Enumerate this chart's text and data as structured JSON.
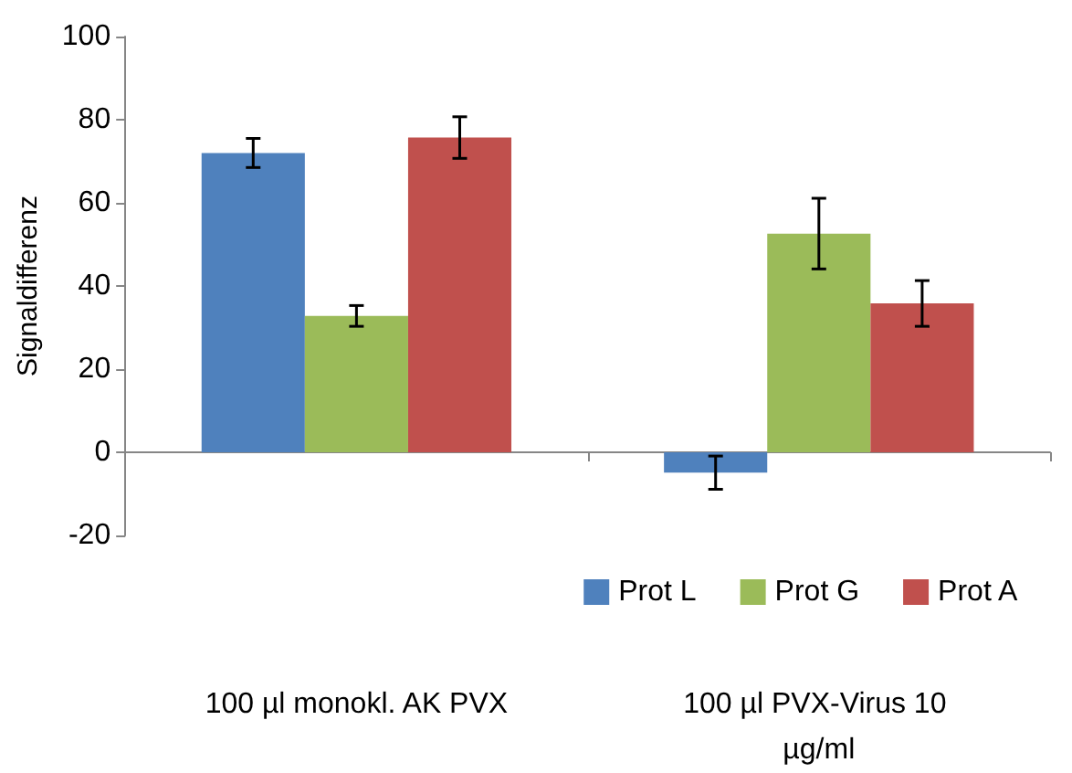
{
  "chart_data": {
    "type": "bar",
    "ylabel": "Signaldifferenz",
    "categories": [
      "100 µl monokl. AK PVX",
      "100 µl PVX-Virus 10 µg/ml"
    ],
    "series": [
      {
        "name": "Prot L",
        "color": "#4f81bd",
        "values": [
          72,
          -4.9
        ],
        "errors": [
          3.5,
          4
        ]
      },
      {
        "name": "Prot G",
        "color": "#9bbb59",
        "values": [
          32.8,
          52.6
        ],
        "errors": [
          2.5,
          8.5
        ]
      },
      {
        "name": "Prot A",
        "color": "#c0504d",
        "values": [
          75.7,
          35.8
        ],
        "errors": [
          5,
          5.5
        ]
      }
    ],
    "ylim": [
      -20,
      100
    ],
    "yticks": [
      -20,
      0,
      20,
      40,
      60,
      80,
      100
    ],
    "legend": "bottom right"
  }
}
